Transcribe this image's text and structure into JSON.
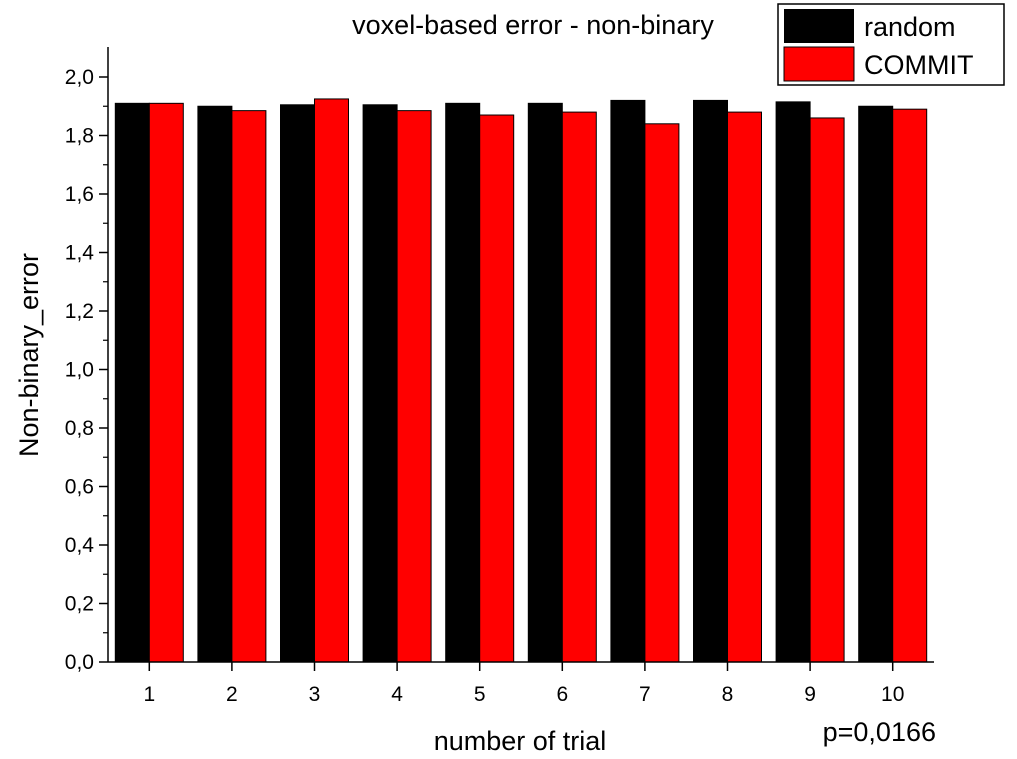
{
  "chart_data": {
    "type": "bar",
    "title": "voxel-based error - non-binary",
    "xlabel": "number of trial",
    "ylabel": "Non-binary_error",
    "annotation": "p=0,0166",
    "categories": [
      "1",
      "2",
      "3",
      "4",
      "5",
      "6",
      "7",
      "8",
      "9",
      "10"
    ],
    "series": [
      {
        "name": "random",
        "color": "#000000",
        "values": [
          1.91,
          1.9,
          1.905,
          1.905,
          1.91,
          1.91,
          1.92,
          1.92,
          1.915,
          1.9
        ]
      },
      {
        "name": "COMMIT",
        "color": "#ff0000",
        "values": [
          1.91,
          1.885,
          1.925,
          1.885,
          1.87,
          1.88,
          1.84,
          1.88,
          1.86,
          1.89
        ]
      }
    ],
    "ylim": [
      0,
      2.0
    ],
    "yticks": [
      "0,0",
      "0,2",
      "0,4",
      "0,6",
      "0,8",
      "1,0",
      "1,2",
      "1,4",
      "1,6",
      "1,8",
      "2,0"
    ],
    "ytick_values": [
      0,
      0.2,
      0.4,
      0.6,
      0.8,
      1.0,
      1.2,
      1.4,
      1.6,
      1.8,
      2.0
    ],
    "grid": false,
    "legend_position": "top-right"
  }
}
